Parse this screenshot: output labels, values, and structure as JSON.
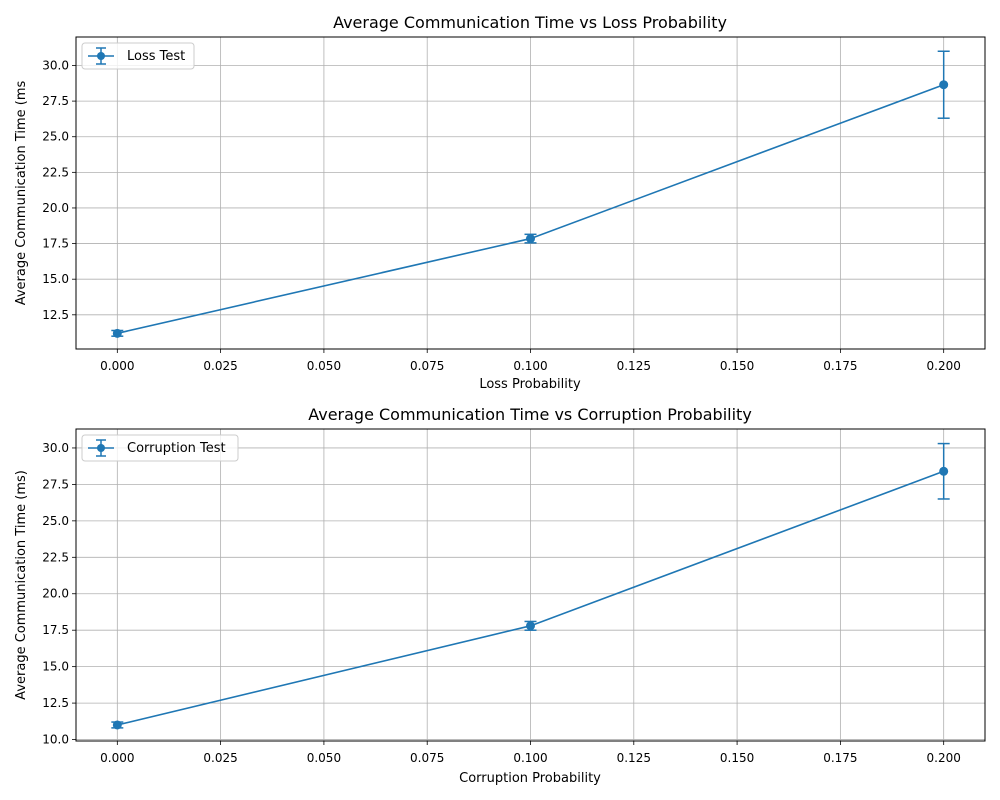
{
  "chart_data": [
    {
      "type": "line",
      "title": "Average Communication Time vs Loss Probability",
      "xlabel": "Loss Probability",
      "ylabel": "Average Communication Time (ms",
      "xlim": [
        -0.01,
        0.21
      ],
      "ylim": [
        10.1,
        32.0
      ],
      "xticks": [
        0.0,
        0.025,
        0.05,
        0.075,
        0.1,
        0.125,
        0.15,
        0.175,
        0.2
      ],
      "xtick_labels": [
        "0.000",
        "0.025",
        "0.050",
        "0.075",
        "0.100",
        "0.125",
        "0.150",
        "0.175",
        "0.200"
      ],
      "yticks": [
        12.5,
        15.0,
        17.5,
        20.0,
        22.5,
        25.0,
        27.5,
        30.0
      ],
      "ytick_labels": [
        "12.5",
        "15.0",
        "17.5",
        "20.0",
        "22.5",
        "25.0",
        "27.5",
        "30.0"
      ],
      "grid": true,
      "legend_position": "upper-left",
      "series": [
        {
          "name": "Loss Test",
          "color": "#1f77b4",
          "x": [
            0.0,
            0.1,
            0.2
          ],
          "y": [
            11.2,
            17.85,
            28.65
          ],
          "yerr": [
            0.2,
            0.3,
            2.35
          ]
        }
      ]
    },
    {
      "type": "line",
      "title": "Average Communication Time vs Corruption Probability",
      "xlabel": "Corruption Probability",
      "ylabel": "Average Communication Time (ms)",
      "xlim": [
        -0.01,
        0.21
      ],
      "ylim": [
        9.9,
        31.3
      ],
      "xticks": [
        0.0,
        0.025,
        0.05,
        0.075,
        0.1,
        0.125,
        0.15,
        0.175,
        0.2
      ],
      "xtick_labels": [
        "0.000",
        "0.025",
        "0.050",
        "0.075",
        "0.100",
        "0.125",
        "0.150",
        "0.175",
        "0.200"
      ],
      "yticks": [
        10.0,
        12.5,
        15.0,
        17.5,
        20.0,
        22.5,
        25.0,
        27.5,
        30.0
      ],
      "ytick_labels": [
        "10.0",
        "12.5",
        "15.0",
        "17.5",
        "20.0",
        "22.5",
        "25.0",
        "27.5",
        "30.0"
      ],
      "grid": true,
      "legend_position": "upper-left",
      "series": [
        {
          "name": "Corruption Test",
          "color": "#1f77b4",
          "x": [
            0.0,
            0.1,
            0.2
          ],
          "y": [
            11.0,
            17.8,
            28.4
          ],
          "yerr": [
            0.2,
            0.3,
            1.9
          ]
        }
      ]
    }
  ]
}
